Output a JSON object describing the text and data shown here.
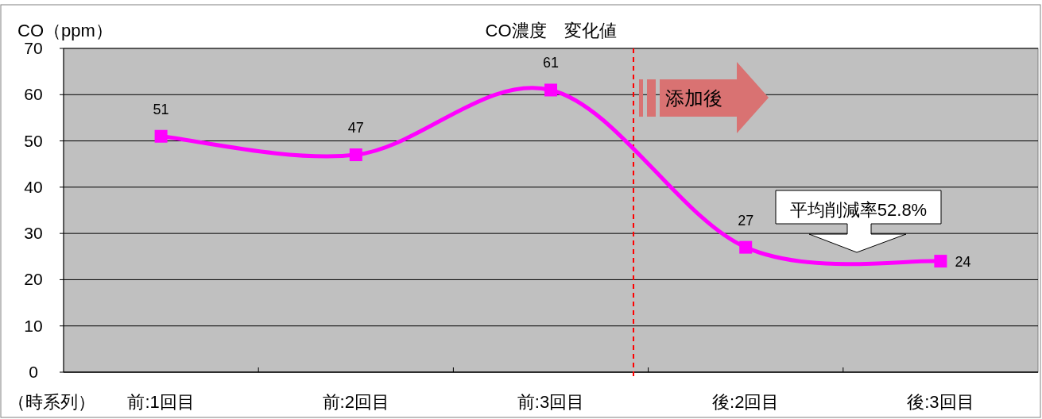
{
  "chart_data": {
    "type": "line",
    "title": "CO濃度　変化値",
    "ylabel": "CO（ppm）",
    "xlabel": "（時系列）",
    "categories": [
      "前:1回目",
      "前:2回目",
      "前:3回目",
      "後:2回目",
      "後:3回目"
    ],
    "series": [
      {
        "color": "#ff00ff",
        "values": [
          51,
          47,
          61,
          27,
          24
        ]
      }
    ],
    "ylim": [
      0,
      70
    ],
    "yticks": [
      0,
      10,
      20,
      30,
      40,
      50,
      60,
      70
    ],
    "grid": "y",
    "marker": "square",
    "line_style": "solid",
    "data_labels": true,
    "annotations": [
      "添加後",
      "平均削減率52.8%"
    ]
  }
}
